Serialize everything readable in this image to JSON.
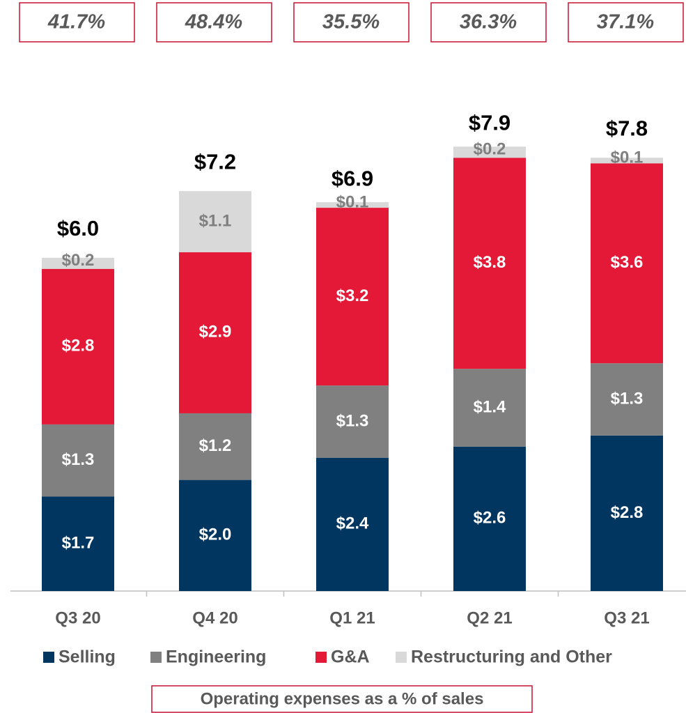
{
  "chart_data": {
    "type": "stacked_bar",
    "categories": [
      "Q3 20",
      "Q4 20",
      "Q1 21",
      "Q2 21",
      "Q3 21"
    ],
    "series": [
      {
        "name": "Selling",
        "color": "#003660",
        "values": [
          1.7,
          2.0,
          2.4,
          2.6,
          2.8
        ],
        "value_labels": [
          "$1.7",
          "$2.0",
          "$2.4",
          "$2.6",
          "$2.8"
        ]
      },
      {
        "name": "Engineering",
        "color": "#808080",
        "values": [
          1.3,
          1.2,
          1.3,
          1.4,
          1.3
        ],
        "value_labels": [
          "$1.3",
          "$1.2",
          "$1.3",
          "$1.4",
          "$1.3"
        ]
      },
      {
        "name": "G&A",
        "color": "#e31937",
        "values": [
          2.8,
          2.9,
          3.2,
          3.8,
          3.6
        ],
        "value_labels": [
          "$2.8",
          "$2.9",
          "$3.2",
          "$3.8",
          "$3.6"
        ]
      },
      {
        "name": "Restructuring and Other",
        "color": "#d9d9d9",
        "values": [
          0.2,
          1.1,
          0.1,
          0.2,
          0.1
        ],
        "value_labels": [
          "$0.2",
          "$1.1",
          "$0.1",
          "$0.2",
          "$0.1"
        ]
      }
    ],
    "totals": [
      6.0,
      7.2,
      6.9,
      7.9,
      7.8
    ],
    "total_labels": [
      "$6.0",
      "$7.2",
      "$6.9",
      "$7.9",
      "$7.8"
    ],
    "operating_expense_ratio": {
      "title": "Operating expenses as a % of sales",
      "values": [
        41.7,
        48.4,
        35.5,
        36.3,
        37.1
      ],
      "value_labels": [
        "41.7%",
        "48.4%",
        "35.5%",
        "36.3%",
        "37.1%"
      ]
    }
  }
}
